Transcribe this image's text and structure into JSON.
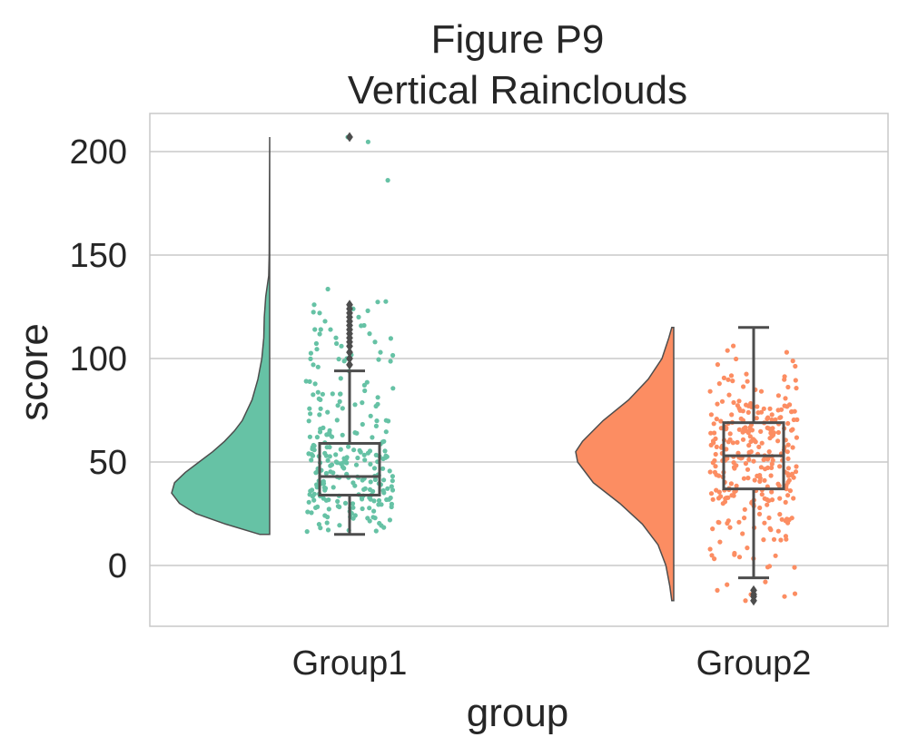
{
  "chart_data": {
    "type": "raincloud",
    "title": "Figure P9",
    "subtitle": "Vertical Rainclouds",
    "xlabel": "group",
    "ylabel": "score",
    "categories": [
      "Group1",
      "Group2"
    ],
    "ylim": [
      -30,
      220
    ],
    "yticks": [
      0,
      50,
      100,
      150,
      200
    ],
    "grid": true,
    "groups": [
      {
        "name": "Group1",
        "color": "#66c2a5",
        "edge_color": "#4d4d4d",
        "n_points": 250,
        "range": [
          15,
          207
        ],
        "box": {
          "whisker_low": 15,
          "q1": 34,
          "median": 43,
          "q3": 59,
          "whisker_high": 94
        },
        "outliers": [
          97,
          100,
          103,
          106,
          108,
          110,
          112,
          114,
          116,
          118,
          120,
          122,
          124,
          126,
          207
        ],
        "density": [
          [
            15,
            0.1
          ],
          [
            20,
            0.45
          ],
          [
            25,
            0.75
          ],
          [
            30,
            0.92
          ],
          [
            35,
            1.0
          ],
          [
            40,
            0.97
          ],
          [
            45,
            0.86
          ],
          [
            50,
            0.72
          ],
          [
            55,
            0.58
          ],
          [
            60,
            0.46
          ],
          [
            65,
            0.36
          ],
          [
            70,
            0.28
          ],
          [
            80,
            0.18
          ],
          [
            90,
            0.12
          ],
          [
            100,
            0.08
          ],
          [
            110,
            0.06
          ],
          [
            120,
            0.055
          ],
          [
            130,
            0.04
          ],
          [
            140,
            0.01
          ],
          [
            150,
            0.005
          ],
          [
            207,
            0.0
          ]
        ]
      },
      {
        "name": "Group2",
        "color": "#fc8d62",
        "edge_color": "#4d4d4d",
        "n_points": 300,
        "range": [
          -17,
          115
        ],
        "box": {
          "whisker_low": -6,
          "q1": 37,
          "median": 53,
          "q3": 69,
          "whisker_high": 115
        },
        "outliers": [
          -12,
          -14,
          -15,
          -17
        ],
        "density": [
          [
            -17,
            0.02
          ],
          [
            -10,
            0.04
          ],
          [
            0,
            0.08
          ],
          [
            10,
            0.16
          ],
          [
            20,
            0.32
          ],
          [
            30,
            0.55
          ],
          [
            40,
            0.82
          ],
          [
            50,
            0.98
          ],
          [
            55,
            1.0
          ],
          [
            60,
            0.93
          ],
          [
            70,
            0.72
          ],
          [
            80,
            0.46
          ],
          [
            90,
            0.26
          ],
          [
            100,
            0.12
          ],
          [
            110,
            0.05
          ],
          [
            115,
            0.02
          ]
        ]
      }
    ]
  }
}
